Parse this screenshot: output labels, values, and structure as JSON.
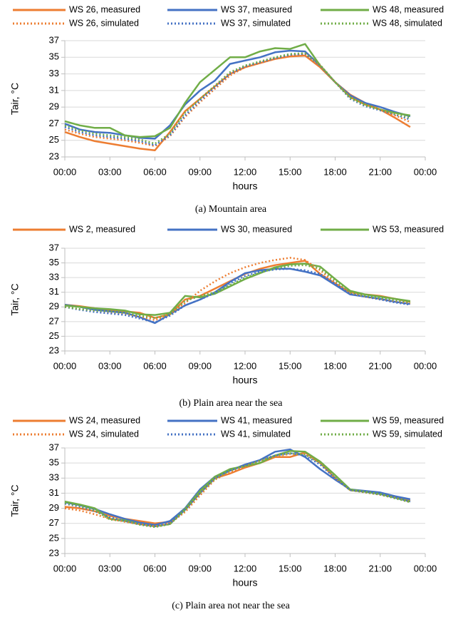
{
  "chart_data": [
    {
      "type": "line",
      "caption": "(a) Mountain area",
      "x_label": "hours",
      "y_label": "Tair, °C",
      "x": [
        0,
        1,
        2,
        3,
        4,
        5,
        6,
        7,
        8,
        9,
        10,
        11,
        12,
        13,
        14,
        15,
        16,
        17,
        18,
        19,
        20,
        21,
        22,
        23
      ],
      "xlim": [
        0,
        24
      ],
      "xticks": [
        {
          "value": 0,
          "label": "00:00"
        },
        {
          "value": 3,
          "label": "03:00"
        },
        {
          "value": 6,
          "label": "06:00"
        },
        {
          "value": 9,
          "label": "09:00"
        },
        {
          "value": 12,
          "label": "12:00"
        },
        {
          "value": 15,
          "label": "15:00"
        },
        {
          "value": 18,
          "label": "18:00"
        },
        {
          "value": 21,
          "label": "21:00"
        },
        {
          "value": 24,
          "label": "00:00"
        }
      ],
      "ylim": [
        23,
        37
      ],
      "yticks": [
        23,
        25,
        27,
        29,
        31,
        33,
        35,
        37
      ],
      "grid": true,
      "legend": "top",
      "series": [
        {
          "name": "WS 26, measured",
          "color": "#ED7D31",
          "style": "solid",
          "values": [
            26.0,
            25.4,
            24.9,
            24.6,
            24.3,
            24.0,
            23.8,
            26.0,
            28.5,
            30.0,
            31.5,
            33.0,
            33.8,
            34.3,
            34.8,
            35.1,
            35.2,
            33.8,
            32.0,
            30.5,
            29.5,
            28.7,
            27.7,
            26.6
          ]
        },
        {
          "name": "WS 37, measured",
          "color": "#4472C4",
          "style": "solid",
          "values": [
            27.0,
            26.3,
            26.0,
            25.9,
            25.6,
            25.3,
            25.2,
            26.8,
            29.3,
            31.0,
            32.2,
            34.2,
            34.6,
            35.0,
            35.6,
            35.8,
            35.7,
            34.0,
            32.0,
            30.4,
            29.5,
            29.0,
            28.4,
            27.9
          ]
        },
        {
          "name": "WS 48, measured",
          "color": "#70AD47",
          "style": "solid",
          "values": [
            27.3,
            26.8,
            26.5,
            26.5,
            25.6,
            25.4,
            25.5,
            26.5,
            29.5,
            32.0,
            33.5,
            35.0,
            35.0,
            35.7,
            36.1,
            36.0,
            36.6,
            34.0,
            32.0,
            30.2,
            29.3,
            28.7,
            28.3,
            28.0
          ]
        },
        {
          "name": "WS 26, simulated",
          "color": "#ED7D31",
          "style": "dotted",
          "values": [
            26.3,
            25.8,
            25.4,
            25.2,
            25.0,
            24.7,
            24.3,
            25.5,
            27.8,
            29.6,
            31.2,
            32.8,
            33.8,
            34.3,
            34.8,
            35.2,
            35.4,
            34.0,
            32.0,
            30.2,
            29.3,
            28.7,
            28.0,
            27.2
          ]
        },
        {
          "name": "WS 37, simulated",
          "color": "#4472C4",
          "style": "dotted",
          "values": [
            26.6,
            26.0,
            25.6,
            25.4,
            25.2,
            24.9,
            24.4,
            25.6,
            28.0,
            29.8,
            31.4,
            33.0,
            33.9,
            34.4,
            34.9,
            35.3,
            35.4,
            34.0,
            32.0,
            30.0,
            29.1,
            28.6,
            28.1,
            27.5
          ]
        },
        {
          "name": "WS 48, simulated",
          "color": "#70AD47",
          "style": "dotted",
          "values": [
            26.8,
            26.2,
            25.8,
            25.6,
            25.4,
            25.1,
            24.6,
            25.8,
            28.3,
            30.0,
            31.6,
            33.2,
            34.0,
            34.5,
            35.0,
            35.4,
            35.5,
            34.1,
            32.0,
            30.1,
            29.2,
            28.7,
            28.2,
            27.7
          ]
        }
      ]
    },
    {
      "type": "line",
      "caption": "(b) Plain area near the sea",
      "x_label": "hours",
      "y_label": "Tair, °C",
      "x": [
        0,
        1,
        2,
        3,
        4,
        5,
        6,
        7,
        8,
        9,
        10,
        11,
        12,
        13,
        14,
        15,
        16,
        17,
        18,
        19,
        20,
        21,
        22,
        23
      ],
      "xlim": [
        0,
        24
      ],
      "xticks": [
        {
          "value": 0,
          "label": "00:00"
        },
        {
          "value": 3,
          "label": "03:00"
        },
        {
          "value": 6,
          "label": "06:00"
        },
        {
          "value": 9,
          "label": "09:00"
        },
        {
          "value": 12,
          "label": "12:00"
        },
        {
          "value": 15,
          "label": "15:00"
        },
        {
          "value": 18,
          "label": "18:00"
        },
        {
          "value": 21,
          "label": "21:00"
        },
        {
          "value": 24,
          "label": "00:00"
        }
      ],
      "ylim": [
        23,
        37
      ],
      "yticks": [
        23,
        25,
        27,
        29,
        31,
        33,
        35,
        37
      ],
      "grid": true,
      "legend": "top",
      "series": [
        {
          "name": "WS 2, measured",
          "color": "#ED7D31",
          "style": "solid",
          "values": [
            29.3,
            29.1,
            28.8,
            28.6,
            28.4,
            28.2,
            27.5,
            28.0,
            30.0,
            30.5,
            31.5,
            32.5,
            33.5,
            34.2,
            34.7,
            35.0,
            35.3,
            33.5,
            32.2,
            31.0,
            30.7,
            30.5,
            30.1,
            29.7
          ]
        },
        {
          "name": "WS 30, measured",
          "color": "#4472C4",
          "style": "solid",
          "values": [
            29.3,
            29.0,
            28.6,
            28.4,
            28.2,
            27.6,
            26.8,
            28.0,
            29.2,
            30.0,
            31.0,
            32.4,
            33.6,
            34.0,
            34.2,
            34.2,
            33.8,
            33.3,
            32.0,
            30.7,
            30.4,
            30.1,
            29.7,
            29.4
          ]
        },
        {
          "name": "WS 53, measured",
          "color": "#70AD47",
          "style": "solid",
          "values": [
            29.2,
            29.0,
            28.8,
            28.7,
            28.5,
            28.0,
            27.9,
            28.2,
            30.5,
            30.3,
            30.8,
            31.8,
            32.8,
            33.6,
            34.4,
            34.8,
            34.9,
            34.5,
            32.8,
            31.2,
            30.7,
            30.4,
            30.1,
            29.8
          ]
        },
        {
          "color": "#ED7D31",
          "style": "dotted",
          "values": [
            29.0,
            28.7,
            28.4,
            28.2,
            28.0,
            27.7,
            27.2,
            28.0,
            29.5,
            31.2,
            32.5,
            33.6,
            34.4,
            35.0,
            35.4,
            35.7,
            35.4,
            34.0,
            32.3,
            30.9,
            30.4,
            30.1,
            29.8,
            29.5
          ]
        },
        {
          "color": "#4472C4",
          "style": "dotted",
          "values": [
            29.0,
            28.6,
            28.3,
            28.1,
            27.9,
            27.4,
            26.9,
            27.8,
            29.2,
            30.0,
            30.9,
            32.2,
            33.2,
            33.8,
            34.1,
            34.2,
            34.0,
            33.5,
            32.2,
            30.8,
            30.4,
            30.0,
            29.6,
            29.3
          ]
        },
        {
          "color": "#70AD47",
          "style": "dotted",
          "values": [
            29.0,
            28.7,
            28.5,
            28.4,
            28.2,
            27.8,
            27.5,
            28.0,
            29.8,
            30.5,
            31.0,
            32.0,
            33.0,
            33.7,
            34.2,
            34.6,
            34.7,
            34.2,
            32.6,
            31.0,
            30.5,
            30.2,
            29.9,
            29.6
          ]
        }
      ]
    },
    {
      "type": "line",
      "caption": "(c) Plain area not near the sea",
      "x_label": "hours",
      "y_label": "Tair, °C",
      "x": [
        0,
        1,
        2,
        3,
        4,
        5,
        6,
        7,
        8,
        9,
        10,
        11,
        12,
        13,
        14,
        15,
        16,
        17,
        18,
        19,
        20,
        21,
        22,
        23
      ],
      "xlim": [
        0,
        24
      ],
      "xticks": [
        {
          "value": 0,
          "label": "00:00"
        },
        {
          "value": 3,
          "label": "03:00"
        },
        {
          "value": 6,
          "label": "06:00"
        },
        {
          "value": 9,
          "label": "09:00"
        },
        {
          "value": 12,
          "label": "12:00"
        },
        {
          "value": 15,
          "label": "15:00"
        },
        {
          "value": 18,
          "label": "18:00"
        },
        {
          "value": 21,
          "label": "21:00"
        },
        {
          "value": 24,
          "label": "00:00"
        }
      ],
      "ylim": [
        23,
        37
      ],
      "yticks": [
        23,
        25,
        27,
        29,
        31,
        33,
        35,
        37
      ],
      "grid": true,
      "legend": "top",
      "series": [
        {
          "name": "WS 24, measured",
          "color": "#ED7D31",
          "style": "solid",
          "values": [
            29.2,
            29.0,
            28.6,
            28.0,
            27.6,
            27.3,
            27.0,
            27.2,
            28.8,
            31.0,
            33.0,
            33.6,
            34.4,
            35.0,
            35.8,
            35.8,
            36.4,
            35.0,
            33.0,
            31.4,
            31.2,
            31.0,
            30.5,
            30.0
          ]
        },
        {
          "name": "WS 41, measured",
          "color": "#4472C4",
          "style": "solid",
          "values": [
            29.8,
            29.4,
            28.9,
            28.2,
            27.6,
            27.1,
            26.8,
            27.3,
            29.0,
            31.5,
            33.2,
            34.0,
            34.8,
            35.4,
            36.5,
            36.8,
            35.8,
            34.2,
            32.8,
            31.5,
            31.3,
            31.1,
            30.6,
            30.2
          ]
        },
        {
          "name": "WS 59, measured",
          "color": "#70AD47",
          "style": "solid",
          "values": [
            29.9,
            29.5,
            29.0,
            27.6,
            27.4,
            26.9,
            26.6,
            26.9,
            28.9,
            31.3,
            33.2,
            34.2,
            34.6,
            35.0,
            36.0,
            36.6,
            36.5,
            35.2,
            33.4,
            31.5,
            31.2,
            30.9,
            30.4,
            29.9
          ]
        },
        {
          "name": "WS 24, simulated",
          "color": "#ED7D31",
          "style": "dotted",
          "values": [
            29.0,
            28.7,
            28.2,
            27.6,
            27.2,
            26.9,
            26.6,
            27.0,
            28.5,
            30.7,
            32.8,
            33.8,
            34.6,
            35.3,
            35.9,
            36.2,
            36.2,
            35.0,
            33.0,
            31.4,
            31.1,
            30.8,
            30.4,
            29.8
          ]
        },
        {
          "name": "WS 41, simulated",
          "color": "#4472C4",
          "style": "dotted",
          "values": [
            29.6,
            29.2,
            28.6,
            27.8,
            27.3,
            26.9,
            26.6,
            27.0,
            28.8,
            31.0,
            33.0,
            34.0,
            34.7,
            35.4,
            36.0,
            36.3,
            36.0,
            34.8,
            33.0,
            31.4,
            31.2,
            30.9,
            30.4,
            29.9
          ]
        },
        {
          "name": "WS 59, simulated",
          "color": "#70AD47",
          "style": "dotted",
          "values": [
            29.7,
            29.3,
            28.7,
            27.5,
            27.3,
            26.8,
            26.5,
            26.9,
            28.7,
            31.0,
            32.9,
            34.0,
            34.6,
            35.3,
            36.0,
            36.3,
            36.1,
            35.0,
            33.2,
            31.4,
            31.1,
            30.8,
            30.3,
            29.8
          ]
        }
      ]
    }
  ]
}
